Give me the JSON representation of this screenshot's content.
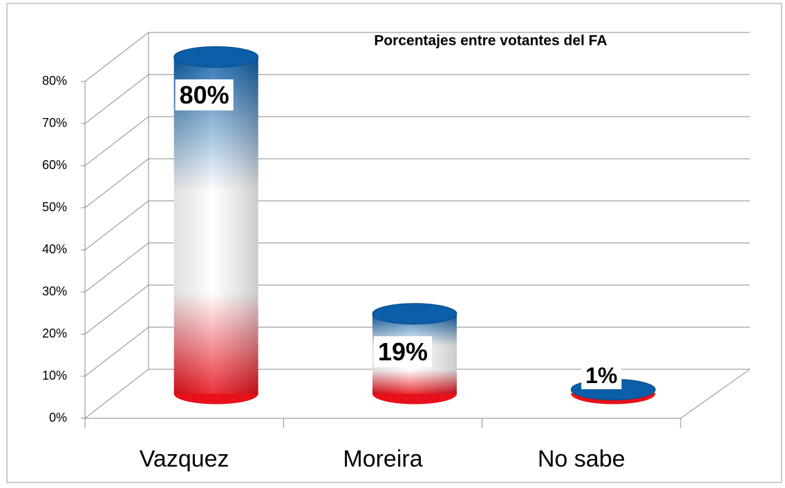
{
  "chart_data": {
    "type": "bar",
    "title": "Porcentajes entre votantes del FA",
    "categories": [
      "Vazquez",
      "Moreira",
      "No sabe"
    ],
    "values": [
      80,
      19,
      1
    ],
    "value_labels": [
      "80%",
      "19%",
      "1%"
    ],
    "colors": [
      "#0b5ea8",
      "#ffffff",
      "#e8101a"
    ],
    "ylim": [
      0,
      80
    ],
    "yticks": [
      {
        "value": 0,
        "label": "0%"
      },
      {
        "value": 10,
        "label": "10%"
      },
      {
        "value": 20,
        "label": "20%"
      },
      {
        "value": 30,
        "label": "30%"
      },
      {
        "value": 40,
        "label": "40%"
      },
      {
        "value": 50,
        "label": "50%"
      },
      {
        "value": 60,
        "label": "60%"
      },
      {
        "value": 70,
        "label": "70%"
      },
      {
        "value": 80,
        "label": "80%"
      }
    ],
    "grid": true
  }
}
